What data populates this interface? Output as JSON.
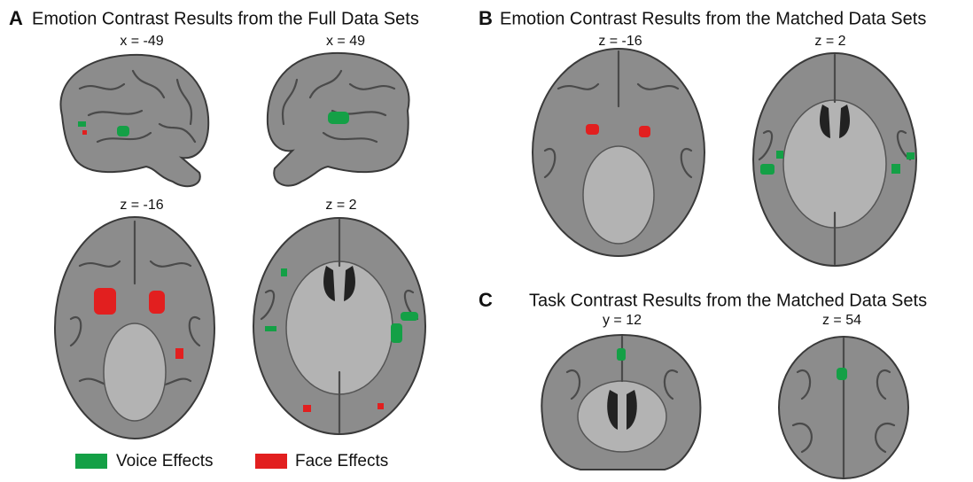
{
  "panels": [
    {
      "letter": "A",
      "title": "Emotion Contrast Results from the Full Data Sets",
      "slices": [
        "x = -49",
        "x = 49",
        "z = -16",
        "z = 2"
      ]
    },
    {
      "letter": "B",
      "title": "Emotion Contrast Results from the Matched Data Sets",
      "slices": [
        "z = -16",
        "z = 2"
      ]
    },
    {
      "letter": "C",
      "title": "Task Contrast Results from the Matched Data Sets",
      "slices": [
        "y = 12",
        "z = 54"
      ]
    }
  ],
  "legend": [
    {
      "label": "Voice Effects",
      "color": "#14a046"
    },
    {
      "label": "Face Effects",
      "color": "#e21f1f"
    }
  ]
}
